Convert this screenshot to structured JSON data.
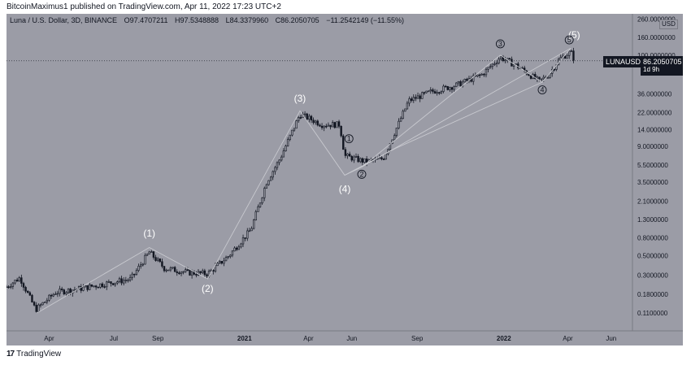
{
  "header": {
    "publisher": "BitcoinMaximus1 published on TradingView.com, Apr 11, 2022 17:23 UTC+2"
  },
  "legend": {
    "symbol": "Luna / U.S. Dollar, 3D, BINANCE",
    "open": "O97.4707211",
    "high": "H97.5348888",
    "low": "L84.3379960",
    "close": "C86.2050705",
    "change": "−11.2542149 (−11.55%)"
  },
  "currency_box": "USD",
  "price_tag": {
    "ticker": "LUNAUSD",
    "price": "86.2050705",
    "countdown": "1d 9h"
  },
  "footer": {
    "brand": "TradingView"
  },
  "colors": {
    "plot_bg": "#9b9ca6",
    "candle": "#131722",
    "wave_line": "#c8c9cf",
    "label": "#ffffff"
  },
  "chart_data": {
    "type": "candlestick",
    "title": "",
    "yscale": "log",
    "ylim": [
      0.085,
      280
    ],
    "y_ticks": [
      {
        "value": 260,
        "label": "260.0000000"
      },
      {
        "value": 160,
        "label": "160.0000000"
      },
      {
        "value": 100,
        "label": "100.0000000"
      },
      {
        "value": 36,
        "label": "36.0000000"
      },
      {
        "value": 22,
        "label": "22.0000000"
      },
      {
        "value": 14,
        "label": "14.0000000"
      },
      {
        "value": 9,
        "label": "9.0000000"
      },
      {
        "value": 5.5,
        "label": "5.5000000"
      },
      {
        "value": 3.5,
        "label": "3.5000000"
      },
      {
        "value": 2.1,
        "label": "2.1000000"
      },
      {
        "value": 1.3,
        "label": "1.3000000"
      },
      {
        "value": 0.8,
        "label": "0.8000000"
      },
      {
        "value": 0.5,
        "label": "0.5000000"
      },
      {
        "value": 0.3,
        "label": "0.3000000"
      },
      {
        "value": 0.18,
        "label": "0.1800000"
      },
      {
        "value": 0.11,
        "label": "0.1100000"
      }
    ],
    "xlim": [
      "2020-02-01",
      "2022-07-01"
    ],
    "x_ticks": [
      {
        "date": "2020-04-01",
        "label": "Apr",
        "bold": false
      },
      {
        "date": "2020-07-01",
        "label": "Jul",
        "bold": false
      },
      {
        "date": "2020-09-01",
        "label": "Sep",
        "bold": false
      },
      {
        "date": "2021-01-01",
        "label": "2021",
        "bold": true
      },
      {
        "date": "2021-04-01",
        "label": "Apr",
        "bold": false
      },
      {
        "date": "2021-06-01",
        "label": "Jun",
        "bold": false
      },
      {
        "date": "2021-09-01",
        "label": "Sep",
        "bold": false
      },
      {
        "date": "2022-01-01",
        "label": "2022",
        "bold": true
      },
      {
        "date": "2022-04-01",
        "label": "Apr",
        "bold": false
      },
      {
        "date": "2022-06-01",
        "label": "Jun",
        "bold": false
      }
    ],
    "price_anchors": [
      {
        "date": "2020-02-01",
        "price": 0.22
      },
      {
        "date": "2020-02-20",
        "price": 0.28
      },
      {
        "date": "2020-03-13",
        "price": 0.12
      },
      {
        "date": "2020-04-10",
        "price": 0.19
      },
      {
        "date": "2020-05-15",
        "price": 0.21
      },
      {
        "date": "2020-06-20",
        "price": 0.24
      },
      {
        "date": "2020-07-25",
        "price": 0.27
      },
      {
        "date": "2020-08-20",
        "price": 0.55
      },
      {
        "date": "2020-09-10",
        "price": 0.36
      },
      {
        "date": "2020-10-15",
        "price": 0.32
      },
      {
        "date": "2020-11-10",
        "price": 0.31
      },
      {
        "date": "2020-12-10",
        "price": 0.5
      },
      {
        "date": "2021-01-10",
        "price": 1.0
      },
      {
        "date": "2021-02-01",
        "price": 3.5
      },
      {
        "date": "2021-02-20",
        "price": 6.5
      },
      {
        "date": "2021-03-20",
        "price": 21
      },
      {
        "date": "2021-04-20",
        "price": 16
      },
      {
        "date": "2021-05-15",
        "price": 16
      },
      {
        "date": "2021-05-22",
        "price": 7
      },
      {
        "date": "2021-06-20",
        "price": 6
      },
      {
        "date": "2021-07-15",
        "price": 6.5
      },
      {
        "date": "2021-08-20",
        "price": 30
      },
      {
        "date": "2021-09-20",
        "price": 38
      },
      {
        "date": "2021-10-25",
        "price": 45
      },
      {
        "date": "2021-12-01",
        "price": 60
      },
      {
        "date": "2021-12-27",
        "price": 95
      },
      {
        "date": "2022-01-20",
        "price": 75
      },
      {
        "date": "2022-02-20",
        "price": 50
      },
      {
        "date": "2022-03-05",
        "price": 60
      },
      {
        "date": "2022-03-20",
        "price": 90
      },
      {
        "date": "2022-04-05",
        "price": 110
      },
      {
        "date": "2022-04-11",
        "price": 86.2
      }
    ],
    "wave_lines": [
      [
        {
          "date": "2020-03-15",
          "price": 0.11
        },
        {
          "date": "2020-08-20",
          "price": 0.62
        },
        {
          "date": "2020-11-10",
          "price": 0.27
        },
        {
          "date": "2021-03-20",
          "price": 23
        },
        {
          "date": "2021-05-22",
          "price": 4.2
        },
        {
          "date": "2021-06-15",
          "price": 5.2
        },
        {
          "date": "2021-12-27",
          "price": 100
        },
        {
          "date": "2022-02-24",
          "price": 49
        },
        {
          "date": "2022-04-05",
          "price": 120
        }
      ],
      [
        {
          "date": "2021-05-22",
          "price": 4.2
        },
        {
          "date": "2021-08-01",
          "price": 8.5
        },
        {
          "date": "2022-02-24",
          "price": 49
        }
      ],
      [
        {
          "date": "2021-06-15",
          "price": 5.2
        },
        {
          "date": "2022-04-05",
          "price": 120
        }
      ]
    ],
    "wave_labels": [
      {
        "text": "(1)",
        "date": "2020-08-20",
        "price": 0.9,
        "style": "major"
      },
      {
        "text": "(2)",
        "date": "2020-11-10",
        "price": 0.21,
        "style": "major"
      },
      {
        "text": "(3)",
        "date": "2021-03-20",
        "price": 32,
        "style": "major"
      },
      {
        "text": "(4)",
        "date": "2021-05-22",
        "price": 2.9,
        "style": "major"
      },
      {
        "text": "(5)",
        "date": "2022-04-10",
        "price": 170,
        "style": "major"
      },
      {
        "text": "1",
        "date": "2021-05-28",
        "price": 11,
        "style": "minor"
      },
      {
        "text": "2",
        "date": "2021-06-15",
        "price": 4.3,
        "style": "minor"
      },
      {
        "text": "3",
        "date": "2021-12-27",
        "price": 135,
        "style": "minor"
      },
      {
        "text": "4",
        "date": "2022-02-24",
        "price": 40,
        "style": "minor"
      },
      {
        "text": "5",
        "date": "2022-04-03",
        "price": 150,
        "style": "minor"
      }
    ],
    "last_price": 86.2050705
  }
}
